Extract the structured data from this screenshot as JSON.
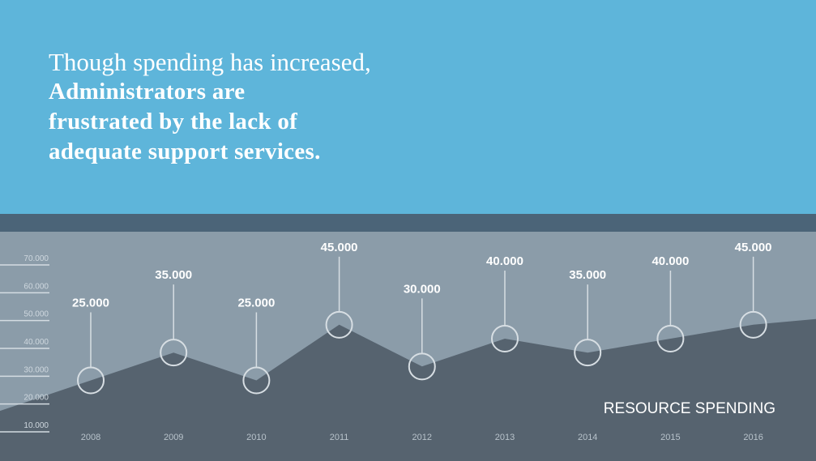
{
  "headline": {
    "line1": "Though spending has increased,",
    "line2": "Administrators are",
    "line3": "frustrated by the lack of",
    "line4": "adequate support services."
  },
  "colors": {
    "header_bg": "#5eb5da",
    "band": "#4b6478",
    "chart_bg": "#8b9ca9",
    "area": "#56636f",
    "marker_stroke": "#d7dee3"
  },
  "chart_data": {
    "type": "area",
    "title": "RESOURCE SPENDING",
    "categories": [
      "2008",
      "2009",
      "2010",
      "2011",
      "2012",
      "2013",
      "2014",
      "2015",
      "2016"
    ],
    "values": [
      25000,
      35000,
      25000,
      45000,
      30000,
      40000,
      35000,
      40000,
      45000
    ],
    "data_labels": [
      "25.000",
      "35.000",
      "25.000",
      "45.000",
      "30.000",
      "40.000",
      "35.000",
      "40.000",
      "45.000"
    ],
    "y_ticks": [
      "10.000",
      "20.000",
      "30.000",
      "40.000",
      "50.000",
      "60.000",
      "70.000"
    ],
    "ylim": [
      10000,
      70000
    ],
    "grid": false,
    "legend": "none"
  }
}
